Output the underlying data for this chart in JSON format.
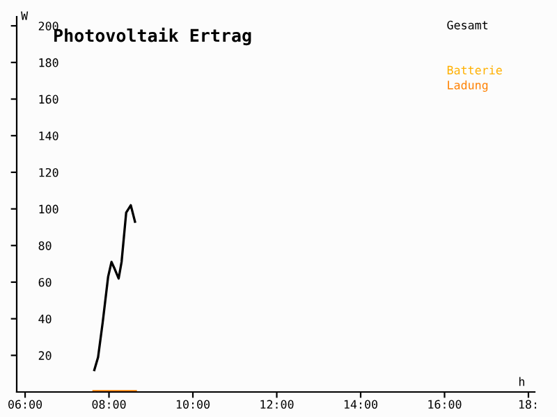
{
  "chart_data": {
    "type": "line",
    "title": "Photovoltaik Ertrag",
    "xlabel": "h",
    "ylabel": "W",
    "x": [
      7.65,
      7.74,
      7.85,
      7.98,
      8.06,
      8.14,
      8.23,
      8.3,
      8.41,
      8.52,
      8.62
    ],
    "series": [
      {
        "name": "Gesamt",
        "color": "#000000",
        "values": [
          12,
          19,
          38,
          63,
          71,
          67,
          62,
          71,
          98,
          102,
          93
        ]
      },
      {
        "name": "Batterie",
        "color": "#ffb000",
        "values": [
          null,
          null,
          null,
          null,
          null,
          null,
          null,
          null,
          null,
          null,
          null
        ]
      },
      {
        "name": "Ladung",
        "color": "#ff8000",
        "values": [
          0,
          0,
          0,
          0,
          0,
          0,
          0,
          0,
          0,
          0,
          0
        ]
      }
    ],
    "xlim": [
      5.8,
      18.15
    ],
    "ylim": [
      0,
      205
    ],
    "xticks": [
      {
        "value": 6,
        "label": "06:00"
      },
      {
        "value": 8,
        "label": "08:00"
      },
      {
        "value": 10,
        "label": "10:00"
      },
      {
        "value": 12,
        "label": "12:00"
      },
      {
        "value": 14,
        "label": "14:00"
      },
      {
        "value": 16,
        "label": "16:00"
      },
      {
        "value": 18,
        "label": "18:"
      }
    ],
    "yticks": [
      20,
      40,
      60,
      80,
      100,
      120,
      140,
      160,
      180,
      200
    ],
    "grid": false,
    "legend": "top right",
    "marker": "none",
    "line_style": "solid"
  }
}
